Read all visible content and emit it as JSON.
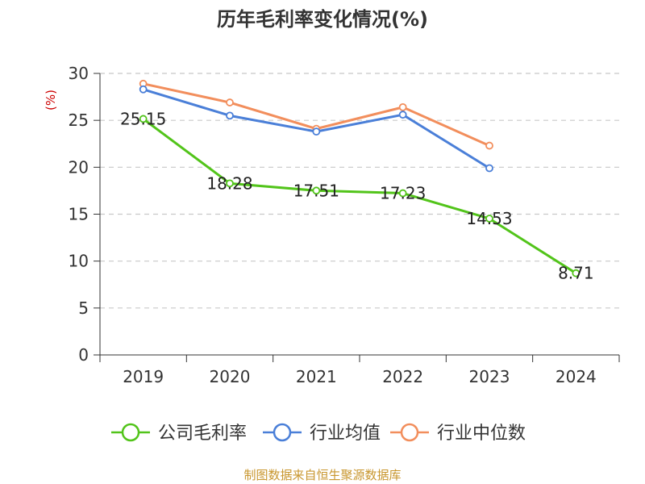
{
  "chart_data": {
    "type": "line",
    "title": "历年毛利率变化情况(%)",
    "unit": "(%)",
    "categories": [
      "2019",
      "2020",
      "2021",
      "2022",
      "2023",
      "2024"
    ],
    "ylim": [
      0,
      30
    ],
    "yticks": [
      0,
      5,
      10,
      15,
      20,
      25,
      30
    ],
    "grid": true,
    "legend_position": "bottom",
    "series": [
      {
        "name": "公司毛利率",
        "color": "#52c41a",
        "values": [
          25.15,
          18.28,
          17.51,
          17.23,
          14.53,
          8.71
        ],
        "show_labels": true
      },
      {
        "name": "行业均值",
        "color": "#4a7fd8",
        "values": [
          28.3,
          25.5,
          23.8,
          25.6,
          19.9,
          null
        ],
        "show_labels": false
      },
      {
        "name": "行业中位数",
        "color": "#f28e5c",
        "values": [
          28.9,
          26.9,
          24.1,
          26.4,
          22.3,
          null
        ],
        "show_labels": false
      }
    ]
  },
  "source": "制图数据来自恒生聚源数据库"
}
